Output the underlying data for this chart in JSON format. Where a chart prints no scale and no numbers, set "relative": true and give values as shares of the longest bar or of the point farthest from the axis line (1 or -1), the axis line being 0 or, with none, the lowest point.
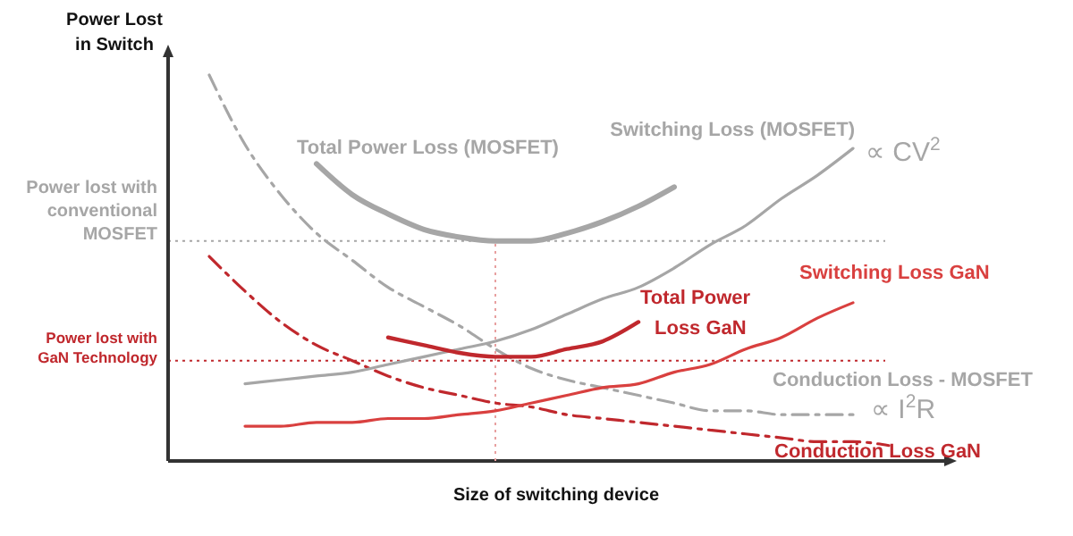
{
  "chart_data": {
    "type": "line",
    "relative": true,
    "xlabel": "Size of switching device",
    "ylabel": "Power Lost in Switch",
    "categories": [
      null,
      null,
      null,
      null,
      null,
      null,
      null,
      null,
      null,
      null,
      null,
      null,
      null,
      null,
      null,
      null,
      null,
      null,
      null,
      null
    ],
    "series": [
      {
        "name": "Conduction Loss - MOSFET",
        "color": "#a6a6a6",
        "line_style": "dashed",
        "values": [
          1.0,
          0.82,
          0.69,
          0.59,
          0.52,
          0.45,
          0.4,
          0.35,
          0.29,
          0.24,
          0.21,
          0.19,
          0.17,
          0.15,
          0.13,
          0.13,
          0.12,
          0.12,
          0.12,
          null
        ]
      },
      {
        "name": "Conduction Loss GaN",
        "color": "#c0282d",
        "line_style": "dashed",
        "values": [
          0.53,
          0.44,
          0.36,
          0.3,
          0.26,
          0.22,
          0.19,
          0.17,
          0.15,
          0.14,
          0.12,
          0.11,
          0.1,
          0.09,
          0.08,
          0.07,
          0.06,
          0.05,
          0.05,
          0.04
        ]
      },
      {
        "name": "Switching Loss (MOSFET)",
        "color": "#a6a6a6",
        "line_style": "solid",
        "values": [
          null,
          0.2,
          0.21,
          0.22,
          0.23,
          0.25,
          0.27,
          0.29,
          0.31,
          0.34,
          0.38,
          0.42,
          0.45,
          0.5,
          0.56,
          0.61,
          0.68,
          0.74,
          0.81,
          null
        ]
      },
      {
        "name": "Switching Loss GaN",
        "color": "#d9403f",
        "line_style": "solid",
        "values": [
          null,
          0.09,
          0.09,
          0.1,
          0.1,
          0.11,
          0.11,
          0.12,
          0.13,
          0.15,
          0.17,
          0.19,
          0.2,
          0.23,
          0.25,
          0.29,
          0.32,
          0.37,
          0.41,
          null
        ]
      },
      {
        "name": "Total Power Loss (MOSFET)",
        "color": "#a6a6a6",
        "line_style": "solid",
        "values": [
          null,
          null,
          null,
          0.77,
          0.69,
          0.64,
          0.6,
          0.58,
          0.57,
          0.57,
          0.59,
          0.62,
          0.66,
          0.71,
          null,
          null,
          null,
          null,
          null,
          null
        ]
      },
      {
        "name": "Total Power Loss GaN",
        "color": "#c0282d",
        "line_style": "solid",
        "values": [
          null,
          null,
          null,
          null,
          null,
          0.32,
          0.3,
          0.28,
          0.27,
          0.27,
          0.29,
          0.31,
          0.36,
          null,
          null,
          null,
          null,
          null,
          null,
          null
        ]
      }
    ],
    "annotations": [
      "∝ I$^{2}$R",
      "∝ CV$^{2}$"
    ],
    "ref_lines": [
      {
        "axis": "y",
        "value": 0.57,
        "label": "Power lost with conventional MOSFET",
        "color": "#a6a6a6",
        "line_style": "dotted"
      },
      {
        "axis": "y",
        "value": 0.26,
        "label": "Power lost with GaN Technology",
        "color": "#c0282d",
        "line_style": "dotted"
      }
    ],
    "marker": "none"
  }
}
